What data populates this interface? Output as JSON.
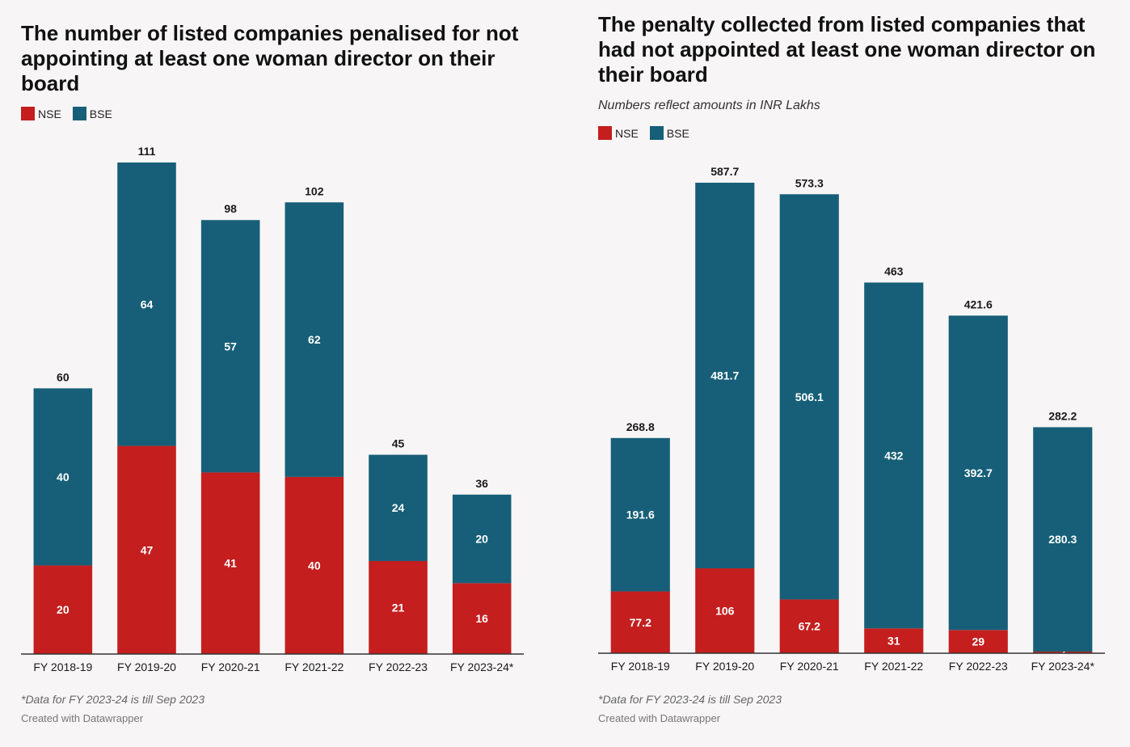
{
  "colors": {
    "nse": "#c41e1e",
    "bse": "#175f78",
    "axis": "#333333"
  },
  "chart_data": [
    {
      "type": "bar",
      "stacked": true,
      "title": "The number of listed companies penalised for not appointing at least one woman director on their board",
      "subtitle": "",
      "categories": [
        "FY 2018-19",
        "FY 2019-20",
        "FY 2020-21",
        "FY 2021-22",
        "FY 2022-23",
        "FY 2023-24*"
      ],
      "series": [
        {
          "name": "NSE",
          "values": [
            20,
            47,
            41,
            40,
            21,
            16
          ]
        },
        {
          "name": "BSE",
          "values": [
            40,
            64,
            57,
            62,
            24,
            20
          ]
        }
      ],
      "totals": [
        60,
        111,
        98,
        102,
        45,
        36
      ],
      "ylim": [
        0,
        111
      ],
      "legend": "top-left",
      "grid": false,
      "note": "*Data for FY 2023-24 is till Sep 2023",
      "credit": "Created with Datawrapper"
    },
    {
      "type": "bar",
      "stacked": true,
      "title": "The penalty collected from listed companies that had not appointed at least one woman director on their board",
      "subtitle": "Numbers reflect amounts in INR Lakhs",
      "categories": [
        "FY 2018-19",
        "FY 2019-20",
        "FY 2020-21",
        "FY 2021-22",
        "FY 2022-23",
        "FY 2023-24*"
      ],
      "series": [
        {
          "name": "NSE",
          "values": [
            77.2,
            106,
            67.2,
            31,
            29,
            2
          ]
        },
        {
          "name": "BSE",
          "values": [
            191.6,
            481.7,
            506.1,
            432,
            392.7,
            280.3
          ]
        }
      ],
      "totals": [
        268.8,
        587.7,
        573.3,
        463,
        421.6,
        282.2
      ],
      "ylim": [
        0,
        587.7
      ],
      "legend": "top-left",
      "grid": false,
      "note": "*Data for FY 2023-24 is till Sep 2023",
      "credit": "Created with Datawrapper"
    }
  ]
}
